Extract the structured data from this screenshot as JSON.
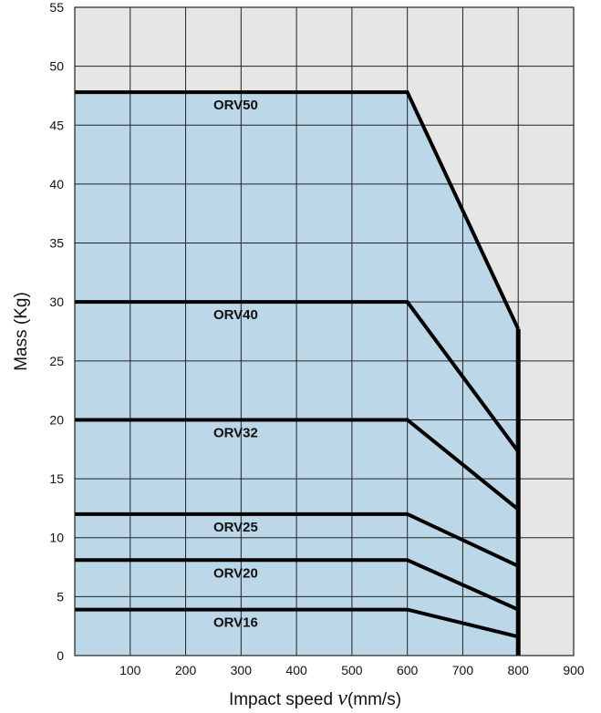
{
  "chart_data": {
    "type": "area",
    "xlabel_prefix": "Impact speed ",
    "xlabel_var": "v",
    "xlabel_suffix": "(mm/s)",
    "ylabel": "Mass (Kg)",
    "xlim": [
      0,
      900
    ],
    "ylim": [
      0,
      55
    ],
    "xticks": [
      100,
      200,
      300,
      400,
      500,
      600,
      700,
      800,
      900
    ],
    "yticks": [
      0,
      5,
      10,
      15,
      20,
      25,
      30,
      35,
      40,
      45,
      50,
      55
    ],
    "grid": true,
    "series": [
      {
        "name": "ORV50",
        "x": [
          0,
          600,
          800
        ],
        "y": [
          47.8,
          47.8,
          27.7
        ]
      },
      {
        "name": "ORV40",
        "x": [
          0,
          600,
          800
        ],
        "y": [
          30.0,
          30.0,
          17.3
        ]
      },
      {
        "name": "ORV32",
        "x": [
          0,
          600,
          800
        ],
        "y": [
          20.0,
          20.0,
          12.4
        ]
      },
      {
        "name": "ORV25",
        "x": [
          0,
          600,
          800
        ],
        "y": [
          12.0,
          12.0,
          7.6
        ]
      },
      {
        "name": "ORV20",
        "x": [
          0,
          600,
          800
        ],
        "y": [
          8.1,
          8.1,
          3.9
        ]
      },
      {
        "name": "ORV16",
        "x": [
          0,
          600,
          800
        ],
        "y": [
          3.9,
          3.9,
          1.6
        ]
      }
    ],
    "label_anchor_x": 250
  },
  "colors": {
    "plot_background": "#e6e6e6",
    "region_fill": "#bcd8e8",
    "grid": "#222222",
    "line": "#000000"
  }
}
